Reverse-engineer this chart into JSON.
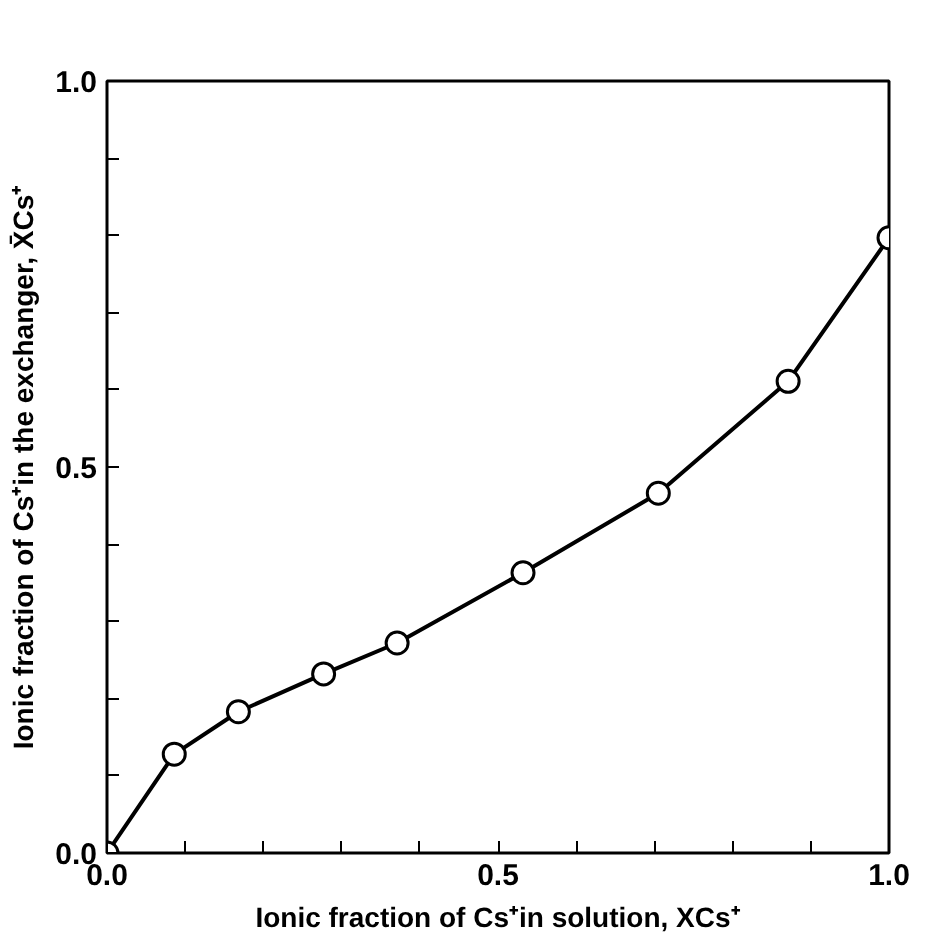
{
  "chart_data": {
    "type": "line",
    "xlabel": "Ionic fraction of Cs⁺in solution, XCs⁺",
    "ylabel": "Ionic fraction of Cs⁺in the exchanger, X̄Cs⁺",
    "x": [
      0.0,
      0.086,
      0.168,
      0.277,
      0.371,
      0.532,
      0.705,
      0.871,
      1.0
    ],
    "series": [
      {
        "color": "#000000",
        "values": [
          0.0,
          0.128,
          0.183,
          0.232,
          0.272,
          0.363,
          0.466,
          0.611,
          0.797
        ]
      }
    ],
    "marker": "circle",
    "line_style": "solid",
    "grid": false,
    "xlim": [
      0.0,
      1.0
    ],
    "ylim": [
      0.0,
      1.0
    ],
    "xticks": [
      {
        "value": 0.0,
        "label": "0.0"
      },
      {
        "value": 0.1,
        "label": null
      },
      {
        "value": 0.2,
        "label": null
      },
      {
        "value": 0.3,
        "label": null
      },
      {
        "value": 0.4,
        "label": null
      },
      {
        "value": 0.5,
        "label": "0.5"
      },
      {
        "value": 0.6,
        "label": null
      },
      {
        "value": 0.7,
        "label": null
      },
      {
        "value": 0.8,
        "label": null
      },
      {
        "value": 0.9,
        "label": null
      },
      {
        "value": 1.0,
        "label": "1.0"
      }
    ],
    "yticks": [
      {
        "value": 0.0,
        "label": "0.0"
      },
      {
        "value": 0.1,
        "label": null
      },
      {
        "value": 0.2,
        "label": null
      },
      {
        "value": 0.3,
        "label": null
      },
      {
        "value": 0.4,
        "label": null
      },
      {
        "value": 0.5,
        "label": "0.5"
      },
      {
        "value": 0.6,
        "label": null
      },
      {
        "value": 0.7,
        "label": null
      },
      {
        "value": 0.8,
        "label": null
      },
      {
        "value": 0.9,
        "label": null
      },
      {
        "value": 1.0,
        "label": "1.0"
      }
    ]
  }
}
